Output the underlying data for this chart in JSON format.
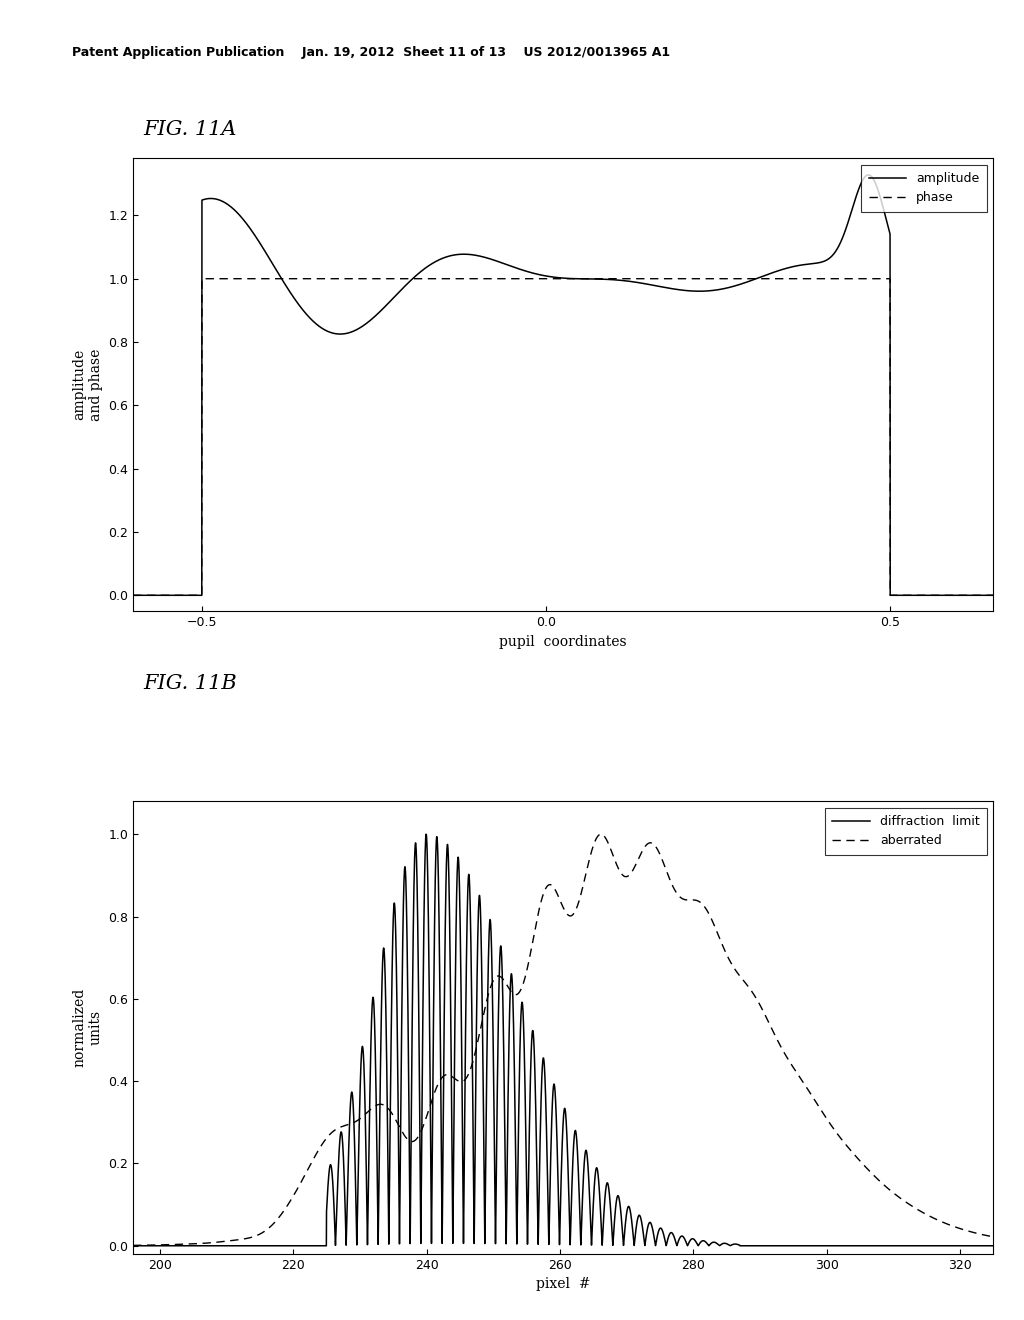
{
  "header_text": "Patent Application Publication    Jan. 19, 2012  Sheet 11 of 13    US 2012/0013965 A1",
  "fig11a_label": "FIG. 11A",
  "fig11b_label": "FIG. 11B",
  "fig11a_xlabel": "pupil  coordinates",
  "fig11a_ylabel": "amplitude\nand phase",
  "fig11a_xlim": [
    -0.6,
    0.65
  ],
  "fig11a_ylim": [
    -0.05,
    1.38
  ],
  "fig11a_xticks": [
    -0.5,
    0,
    0.5
  ],
  "fig11a_yticks": [
    0,
    0.2,
    0.4,
    0.6,
    0.8,
    1.0,
    1.2
  ],
  "fig11b_xlabel": "pixel  #",
  "fig11b_ylabel": "normalized\nunits",
  "fig11b_xlim": [
    196,
    325
  ],
  "fig11b_ylim": [
    -0.02,
    1.08
  ],
  "fig11b_xticks": [
    200,
    220,
    240,
    260,
    280,
    300,
    320
  ],
  "fig11b_yticks": [
    0,
    0.2,
    0.4,
    0.6,
    0.8,
    1.0
  ],
  "background_color": "#ffffff",
  "line_color": "#000000"
}
